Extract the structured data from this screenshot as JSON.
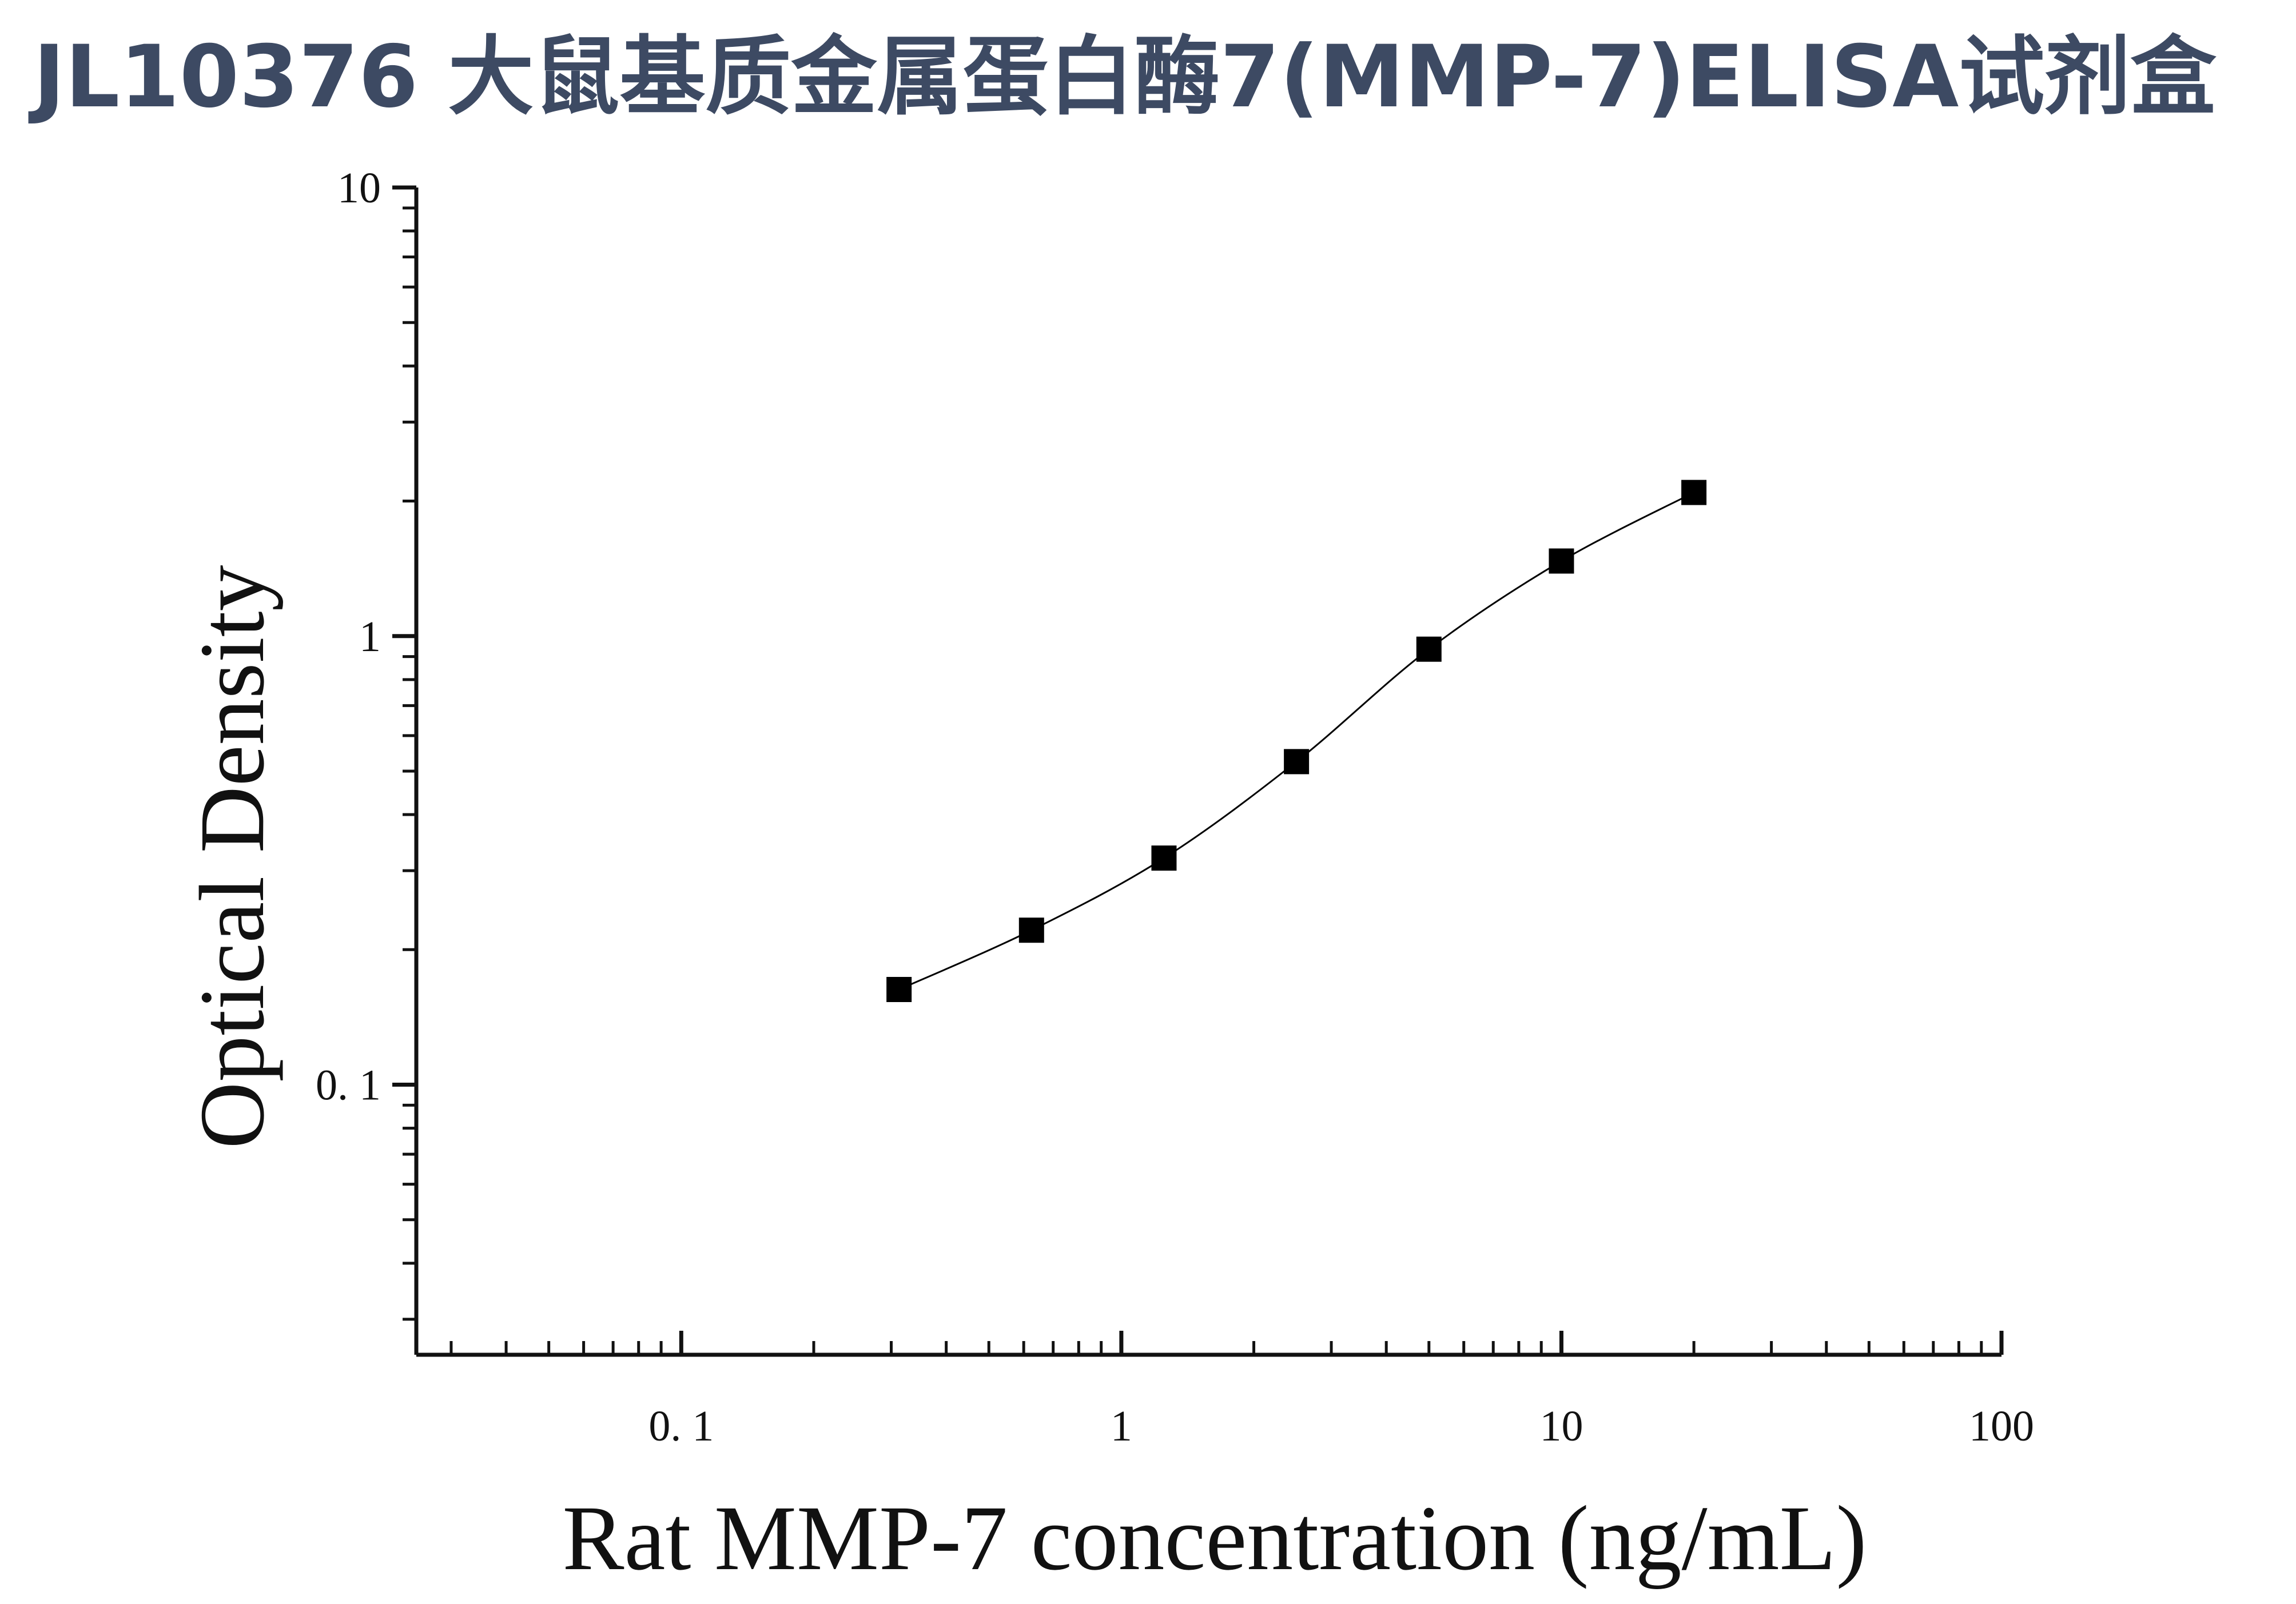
{
  "page": {
    "title": "JL10376 大鼠基质金属蛋白酶7(MMP-7)ELISA试剂盒"
  },
  "colors": {
    "title": "#3d4a63",
    "axis": "#111111",
    "marker": "#000000",
    "curve": "#000000",
    "background": "#ffffff"
  },
  "chart_data": {
    "type": "scatter",
    "title": "",
    "xlabel": "Rat MMP-7 concentration (ng/mL)",
    "ylabel": "Optical Density",
    "xscale": "log",
    "yscale": "log",
    "xlim": [
      0.025,
      100
    ],
    "ylim": [
      0.025,
      10
    ],
    "xticks": [
      {
        "value": 0.1,
        "label": "0. 1"
      },
      {
        "value": 1,
        "label": "1"
      },
      {
        "value": 10,
        "label": "10"
      },
      {
        "value": 100,
        "label": "100"
      }
    ],
    "yticks": [
      {
        "value": 0.1,
        "label": "0. 1"
      },
      {
        "value": 1,
        "label": "1"
      },
      {
        "value": 10,
        "label": "10"
      }
    ],
    "grid": false,
    "legend": "none",
    "marker": "square",
    "fit_line": "smooth curve through points",
    "series": [
      {
        "x": [
          0.3125,
          0.625,
          1.25,
          2.5,
          5,
          10,
          20
        ],
        "y": [
          0.163,
          0.221,
          0.32,
          0.525,
          0.935,
          1.47,
          2.09
        ]
      }
    ]
  }
}
